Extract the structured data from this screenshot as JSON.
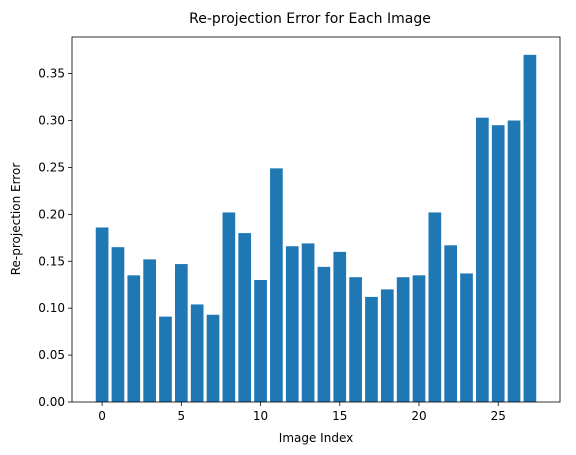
{
  "chart_data": {
    "type": "bar",
    "title": "Re-projection Error for Each Image",
    "xlabel": "Image Index",
    "ylabel": "Re-projection Error",
    "categories": [
      0,
      1,
      2,
      3,
      4,
      5,
      6,
      7,
      8,
      9,
      10,
      11,
      12,
      13,
      14,
      15,
      16,
      17,
      18,
      19,
      20,
      21,
      22,
      23,
      24,
      25,
      26,
      27
    ],
    "values": [
      0.186,
      0.165,
      0.135,
      0.152,
      0.091,
      0.147,
      0.104,
      0.093,
      0.202,
      0.18,
      0.13,
      0.249,
      0.166,
      0.169,
      0.144,
      0.16,
      0.133,
      0.112,
      0.12,
      0.133,
      0.135,
      0.202,
      0.167,
      0.137,
      0.303,
      0.295,
      0.3,
      0.37
    ],
    "xlim": [
      -1.9,
      28.9
    ],
    "ylim": [
      0,
      0.389
    ],
    "xticks": [
      0,
      5,
      10,
      15,
      20,
      25
    ],
    "xtick_labels": [
      "0",
      "5",
      "10",
      "15",
      "20",
      "25"
    ],
    "yticks": [
      0,
      0.05,
      0.1,
      0.15,
      0.2,
      0.25,
      0.3,
      0.35
    ],
    "ytick_labels": [
      "0.00",
      "0.05",
      "0.10",
      "0.15",
      "0.20",
      "0.25",
      "0.30",
      "0.35"
    ],
    "bar_color": "#1f77b4",
    "grid": false,
    "legend": false
  }
}
